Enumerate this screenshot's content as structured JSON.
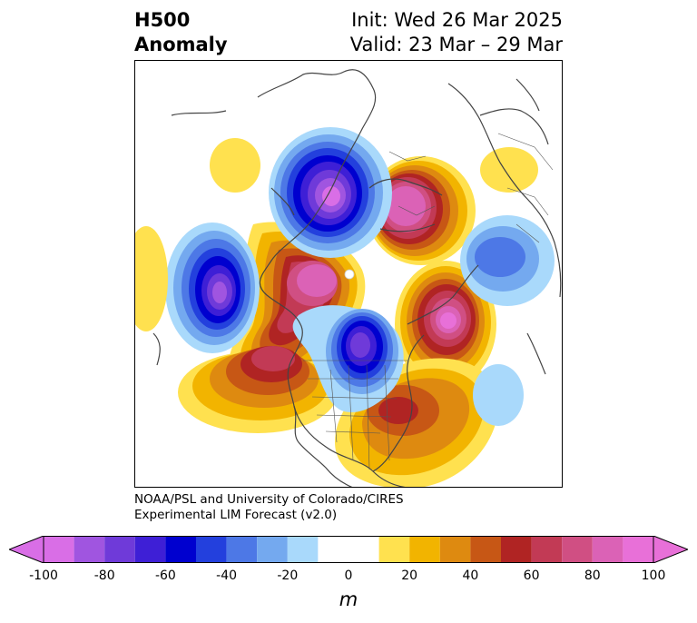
{
  "title": {
    "left_line1": "H500",
    "left_line2": "Anomaly",
    "right_line1": "Init: Wed 26 Mar 2025",
    "right_line2": "Valid: 23 Mar – 29 Mar"
  },
  "credit": {
    "line1": "NOAA/PSL and University of Colorado/CIRES",
    "line2": "Experimental LIM Forecast (v2.0)"
  },
  "colorbar": {
    "unit": "m",
    "min": -100,
    "max": 100,
    "ticks": [
      "-100",
      "-80",
      "-60",
      "-40",
      "-20",
      "0",
      "20",
      "40",
      "60",
      "80",
      "100"
    ],
    "tick_values": [
      -100,
      -80,
      -60,
      -40,
      -20,
      0,
      20,
      40,
      60,
      80,
      100
    ],
    "bins": [
      {
        "from": -100,
        "to": -90,
        "color": "#d96ee6"
      },
      {
        "from": -90,
        "to": -80,
        "color": "#a055e0"
      },
      {
        "from": -80,
        "to": -70,
        "color": "#6f3ad9"
      },
      {
        "from": -70,
        "to": -60,
        "color": "#3e1fd6"
      },
      {
        "from": -60,
        "to": -50,
        "color": "#0000cf"
      },
      {
        "from": -50,
        "to": -40,
        "color": "#2340dd"
      },
      {
        "from": -40,
        "to": -30,
        "color": "#4d78e6"
      },
      {
        "from": -30,
        "to": -20,
        "color": "#74a9ef"
      },
      {
        "from": -20,
        "to": -10,
        "color": "#a9d9fb"
      },
      {
        "from": -10,
        "to": 10,
        "color": "#ffffff"
      },
      {
        "from": 10,
        "to": 20,
        "color": "#ffe14f"
      },
      {
        "from": 20,
        "to": 30,
        "color": "#f2b400"
      },
      {
        "from": 30,
        "to": 40,
        "color": "#de8a10"
      },
      {
        "from": 40,
        "to": 50,
        "color": "#c75715"
      },
      {
        "from": 50,
        "to": 60,
        "color": "#b02423"
      },
      {
        "from": 60,
        "to": 70,
        "color": "#c23a55"
      },
      {
        "from": 70,
        "to": 80,
        "color": "#d04f83"
      },
      {
        "from": 80,
        "to": 90,
        "color": "#db62b6"
      },
      {
        "from": 90,
        "to": 100,
        "color": "#e870d8"
      }
    ],
    "under_color": "#d96ee6",
    "over_color": "#e870d8"
  }
}
